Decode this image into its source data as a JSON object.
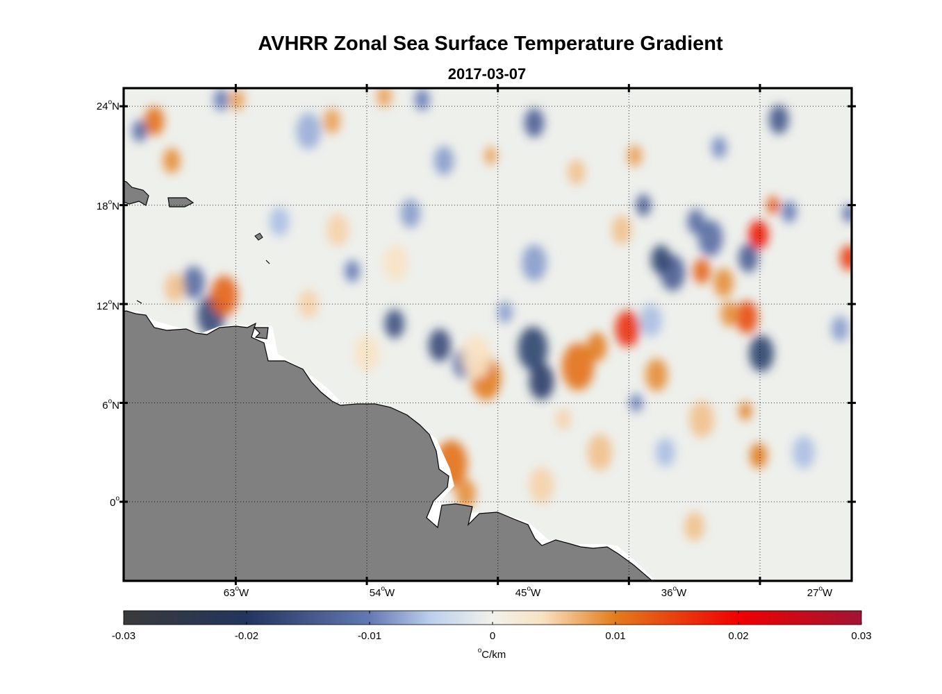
{
  "title": "AVHRR Zonal Sea Surface Temperature Gradient",
  "subtitle": "2017-03-07",
  "map": {
    "lon_range": [
      -70.7,
      -20.7
    ],
    "lat_range": [
      -4.8,
      25.1
    ],
    "y_ticks": [
      {
        "value": 24,
        "deg": "24",
        "hem": "N"
      },
      {
        "value": 18,
        "deg": "18",
        "hem": "N"
      },
      {
        "value": 12,
        "deg": "12",
        "hem": "N"
      },
      {
        "value": 6,
        "deg": "6",
        "hem": "N"
      },
      {
        "value": 0,
        "deg": "0",
        "hem": ""
      }
    ],
    "x_ticks": [
      {
        "value": -63,
        "deg": "63",
        "hem": "W"
      },
      {
        "value": -54,
        "deg": "54",
        "hem": "W"
      },
      {
        "value": -45,
        "deg": "45",
        "hem": "W"
      },
      {
        "value": -36,
        "deg": "36",
        "hem": "W"
      },
      {
        "value": -27,
        "deg": "27",
        "hem": "W"
      }
    ],
    "land_color": "#808080",
    "gridline_style": "dotted",
    "anomalies": [
      {
        "lon": -64.7,
        "lat": 11.3,
        "v": -0.017,
        "r": 1.1
      },
      {
        "lon": -63.8,
        "lat": 12.5,
        "v": 0.012,
        "r": 1.1
      },
      {
        "lon": -65.9,
        "lat": 13.3,
        "v": -0.012,
        "r": 0.9
      },
      {
        "lon": -67.2,
        "lat": 13.0,
        "v": 0.006,
        "r": 0.8
      },
      {
        "lon": -68.6,
        "lat": 23.1,
        "v": 0.011,
        "r": 0.8
      },
      {
        "lon": -69.6,
        "lat": 22.5,
        "v": -0.012,
        "r": 0.6
      },
      {
        "lon": -67.4,
        "lat": 20.7,
        "v": 0.009,
        "r": 0.7
      },
      {
        "lon": -62.9,
        "lat": 24.4,
        "v": 0.008,
        "r": 0.6
      },
      {
        "lon": -64.0,
        "lat": 24.4,
        "v": -0.01,
        "r": 0.6
      },
      {
        "lon": -58.0,
        "lat": 22.5,
        "v": -0.007,
        "r": 1.0
      },
      {
        "lon": -56.4,
        "lat": 23.1,
        "v": 0.008,
        "r": 0.7
      },
      {
        "lon": -55.0,
        "lat": 14.0,
        "v": -0.01,
        "r": 0.6
      },
      {
        "lon": -52.1,
        "lat": 10.8,
        "v": -0.016,
        "r": 0.8
      },
      {
        "lon": -49.0,
        "lat": 9.5,
        "v": -0.017,
        "r": 0.9
      },
      {
        "lon": -47.4,
        "lat": 8.4,
        "v": -0.012,
        "r": 0.8
      },
      {
        "lon": -45.8,
        "lat": 7.5,
        "v": 0.01,
        "r": 1.2
      },
      {
        "lon": -46.5,
        "lat": 8.8,
        "v": 0.004,
        "r": 1.2
      },
      {
        "lon": -48.2,
        "lat": 2.3,
        "v": 0.011,
        "r": 1.3
      },
      {
        "lon": -47.2,
        "lat": 0.5,
        "v": 0.009,
        "r": 0.8
      },
      {
        "lon": -42.6,
        "lat": 9.3,
        "v": -0.018,
        "r": 1.2
      },
      {
        "lon": -42.0,
        "lat": 7.3,
        "v": -0.019,
        "r": 1.0
      },
      {
        "lon": -39.5,
        "lat": 8.2,
        "v": 0.011,
        "r": 1.3
      },
      {
        "lon": -38.2,
        "lat": 9.4,
        "v": 0.01,
        "r": 0.8
      },
      {
        "lon": -36.1,
        "lat": 10.5,
        "v": 0.016,
        "r": 1.0
      },
      {
        "lon": -34.5,
        "lat": 11.0,
        "v": -0.006,
        "r": 0.9
      },
      {
        "lon": -34.1,
        "lat": 7.7,
        "v": 0.009,
        "r": 0.9
      },
      {
        "lon": -33.0,
        "lat": 13.9,
        "v": -0.014,
        "r": 1.0
      },
      {
        "lon": -33.8,
        "lat": 14.7,
        "v": -0.018,
        "r": 0.8
      },
      {
        "lon": -31.0,
        "lat": 14.0,
        "v": 0.012,
        "r": 0.7
      },
      {
        "lon": -29.5,
        "lat": 13.3,
        "v": 0.009,
        "r": 0.8
      },
      {
        "lon": -27.9,
        "lat": 11.2,
        "v": 0.014,
        "r": 0.9
      },
      {
        "lon": -29.1,
        "lat": 11.4,
        "v": 0.009,
        "r": 0.7
      },
      {
        "lon": -26.9,
        "lat": 9.0,
        "v": -0.018,
        "r": 1.0
      },
      {
        "lon": -27.1,
        "lat": 16.2,
        "v": 0.018,
        "r": 0.8
      },
      {
        "lon": -27.8,
        "lat": 14.8,
        "v": -0.014,
        "r": 0.8
      },
      {
        "lon": -30.4,
        "lat": 16.0,
        "v": -0.012,
        "r": 1.0
      },
      {
        "lon": -31.4,
        "lat": 17.0,
        "v": -0.012,
        "r": 0.7
      },
      {
        "lon": -26.1,
        "lat": 18.0,
        "v": 0.013,
        "r": 0.5
      },
      {
        "lon": -25.0,
        "lat": 17.6,
        "v": -0.01,
        "r": 0.6
      },
      {
        "lon": -20.9,
        "lat": 14.8,
        "v": 0.015,
        "r": 0.7
      },
      {
        "lon": -21.5,
        "lat": 10.5,
        "v": -0.008,
        "r": 0.7
      },
      {
        "lon": -20.9,
        "lat": 17.5,
        "v": -0.012,
        "r": 0.5
      },
      {
        "lon": -25.7,
        "lat": 23.2,
        "v": -0.015,
        "r": 0.8
      },
      {
        "lon": -29.8,
        "lat": 21.5,
        "v": -0.009,
        "r": 0.6
      },
      {
        "lon": -35.6,
        "lat": 21.0,
        "v": 0.008,
        "r": 0.6
      },
      {
        "lon": -35.0,
        "lat": 18.0,
        "v": -0.014,
        "r": 0.6
      },
      {
        "lon": -42.5,
        "lat": 23.0,
        "v": -0.014,
        "r": 0.8
      },
      {
        "lon": -39.6,
        "lat": 20.0,
        "v": 0.006,
        "r": 0.7
      },
      {
        "lon": -45.5,
        "lat": 21.0,
        "v": 0.008,
        "r": 0.5
      },
      {
        "lon": -50.2,
        "lat": 24.4,
        "v": -0.01,
        "r": 0.6
      },
      {
        "lon": -52.8,
        "lat": 24.6,
        "v": 0.008,
        "r": 0.6
      },
      {
        "lon": -51.0,
        "lat": 17.5,
        "v": -0.008,
        "r": 0.8
      },
      {
        "lon": -48.7,
        "lat": 20.7,
        "v": -0.008,
        "r": 0.8
      },
      {
        "lon": -60.0,
        "lat": 17.0,
        "v": -0.006,
        "r": 0.8
      },
      {
        "lon": -56.0,
        "lat": 16.5,
        "v": 0.005,
        "r": 0.9
      },
      {
        "lon": -52.0,
        "lat": 14.5,
        "v": 0.004,
        "r": 1.0
      },
      {
        "lon": -42.5,
        "lat": 14.5,
        "v": -0.008,
        "r": 1.0
      },
      {
        "lon": -36.5,
        "lat": 16.5,
        "v": 0.006,
        "r": 0.8
      },
      {
        "lon": -38.0,
        "lat": 3.0,
        "v": 0.006,
        "r": 1.0
      },
      {
        "lon": -33.5,
        "lat": 3.0,
        "v": -0.006,
        "r": 0.8
      },
      {
        "lon": -31.0,
        "lat": 5.0,
        "v": 0.006,
        "r": 1.0
      },
      {
        "lon": -27.1,
        "lat": 2.8,
        "v": 0.01,
        "r": 0.7
      },
      {
        "lon": -24.0,
        "lat": 3.0,
        "v": -0.006,
        "r": 0.9
      },
      {
        "lon": -28.0,
        "lat": 5.5,
        "v": 0.01,
        "r": 0.5
      },
      {
        "lon": -42.0,
        "lat": 1.0,
        "v": 0.005,
        "r": 1.0
      },
      {
        "lon": -31.5,
        "lat": -1.5,
        "v": 0.006,
        "r": 0.8
      },
      {
        "lon": -35.5,
        "lat": 6.0,
        "v": -0.01,
        "r": 0.5
      },
      {
        "lon": -40.5,
        "lat": 5.0,
        "v": 0.005,
        "r": 0.6
      },
      {
        "lon": -58.0,
        "lat": 12.0,
        "v": 0.005,
        "r": 0.8
      },
      {
        "lon": -54.0,
        "lat": 9.0,
        "v": 0.004,
        "r": 1.0
      },
      {
        "lon": -44.5,
        "lat": 11.5,
        "v": -0.008,
        "r": 0.6
      }
    ]
  },
  "colorbar": {
    "ticks": [
      "-0.03",
      "-0.02",
      "-0.01",
      "0",
      "0.01",
      "0.02",
      "0.03"
    ],
    "unit_deg": "o",
    "unit_text": "C/km",
    "stops": [
      {
        "v": -0.03,
        "color": "#3a3a3a"
      },
      {
        "v": -0.02,
        "color": "#22355e"
      },
      {
        "v": -0.01,
        "color": "#6478b4"
      },
      {
        "v": -0.005,
        "color": "#bcd0ee"
      },
      {
        "v": 0.0,
        "color": "#f2f2ea"
      },
      {
        "v": 0.004,
        "color": "#f9e2c4"
      },
      {
        "v": 0.01,
        "color": "#e27c1c"
      },
      {
        "v": 0.02,
        "color": "#f00000"
      },
      {
        "v": 0.03,
        "color": "#a21434"
      }
    ]
  }
}
